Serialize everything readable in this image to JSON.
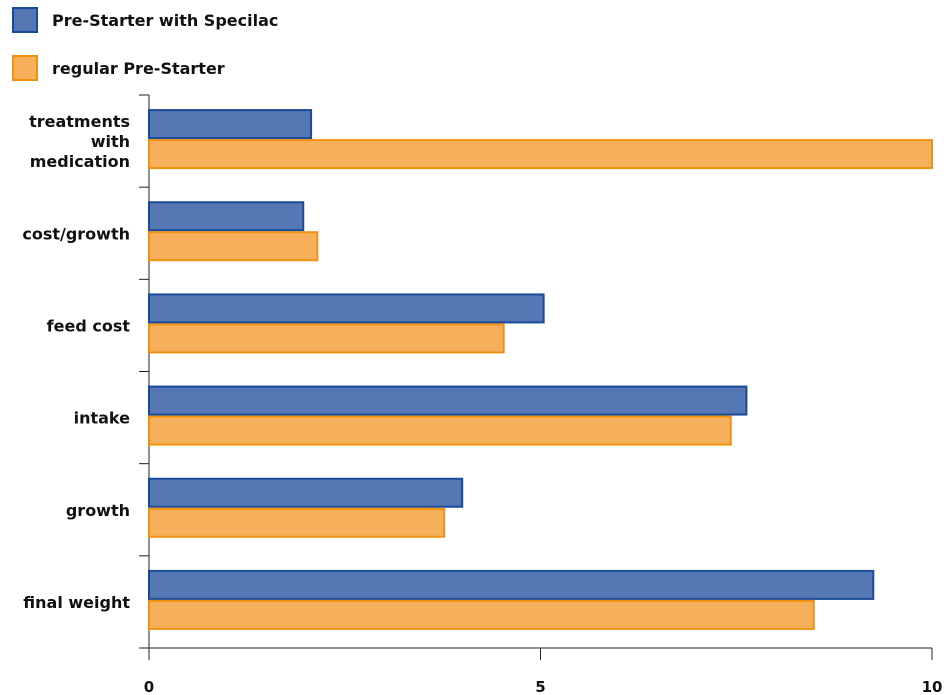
{
  "chart_data": {
    "type": "bar",
    "orientation": "horizontal",
    "categories": [
      [
        "treatments",
        "with",
        "medication"
      ],
      [
        "cost/growth"
      ],
      [
        "feed cost"
      ],
      [
        "intake"
      ],
      [
        "growth"
      ],
      [
        "final weight"
      ]
    ],
    "series": [
      {
        "name": "Pre-Starter with Specilac",
        "fill": "#5577b3",
        "stroke": "#1a4b9a",
        "values": [
          2.07,
          1.97,
          5.04,
          7.63,
          4.0,
          9.25
        ]
      },
      {
        "name": "regular Pre-Starter",
        "fill": "#f6b05c",
        "stroke": "#f0920f",
        "values": [
          10.0,
          2.15,
          4.53,
          7.43,
          3.77,
          8.49
        ]
      }
    ],
    "xlim": [
      0,
      10
    ],
    "xticks": [
      "0",
      "5",
      "10"
    ],
    "legend_position": "top-left",
    "grid": false
  }
}
